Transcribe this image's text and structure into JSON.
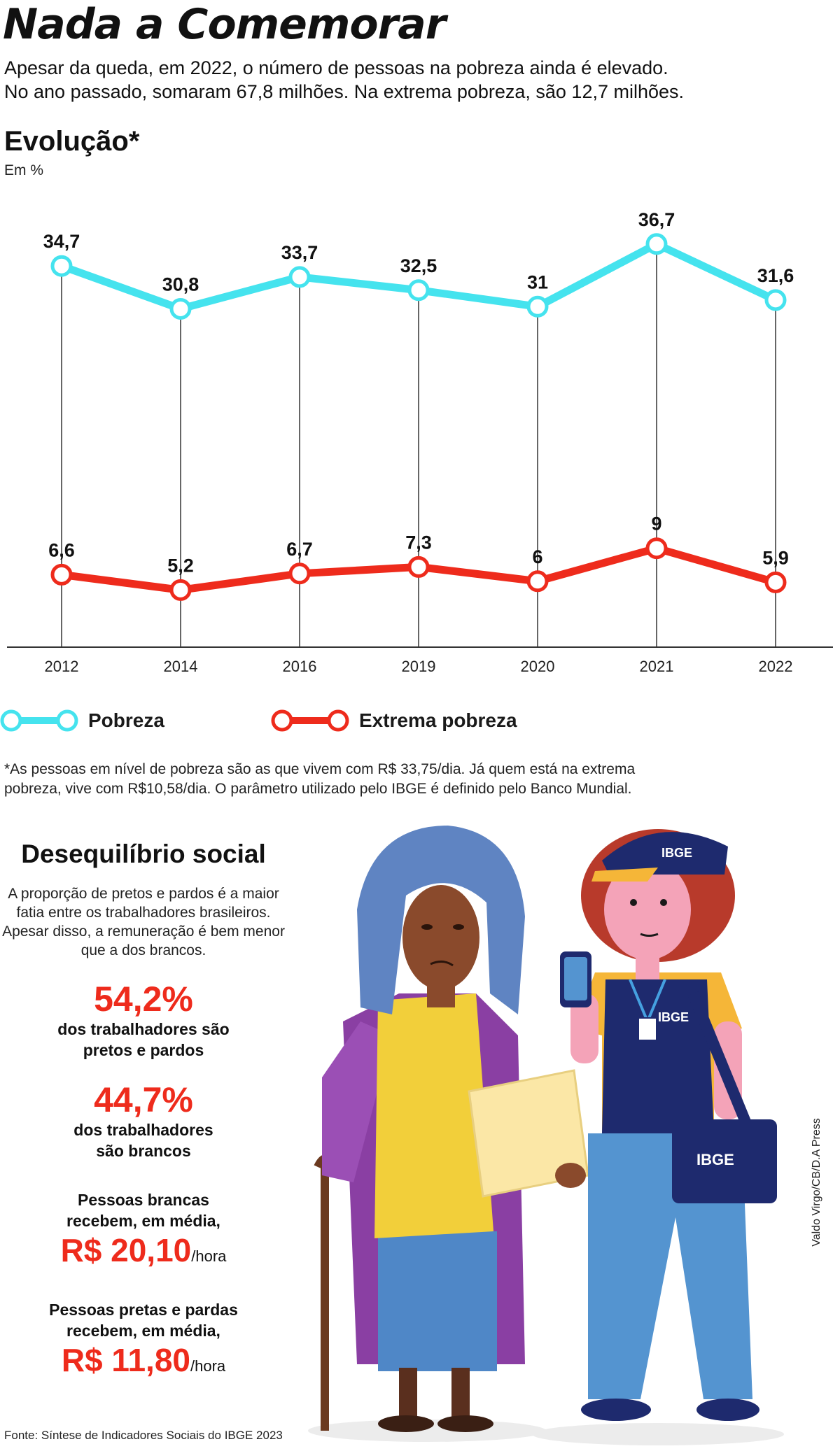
{
  "header": {
    "title": "Nada a Comemorar",
    "subtitle_lines": [
      "Apesar da queda, em 2022, o número de pessoas na pobreza ainda é elevado.",
      "No ano passado, somaram 67,8 milhões. Na extrema pobreza, são 12,7 milhões."
    ]
  },
  "chart_data": {
    "type": "line",
    "title": "Evolução*",
    "unit": "Em %",
    "categories": [
      "2012",
      "2014",
      "2016",
      "2019",
      "2020",
      "2021",
      "2022"
    ],
    "series": [
      {
        "name": "Pobreza",
        "values": [
          34.7,
          30.8,
          33.7,
          32.5,
          31,
          36.7,
          31.6
        ],
        "labels": [
          "34,7",
          "30,8",
          "33,7",
          "32,5",
          "31",
          "36,7",
          "31,6"
        ],
        "color": "#45e3ee"
      },
      {
        "name": "Extrema pobreza",
        "values": [
          6.6,
          5.2,
          6.7,
          7.3,
          6,
          9,
          5.9
        ],
        "labels": [
          "6,6",
          "5,2",
          "6,7",
          "7,3",
          "6",
          "9",
          "5,9"
        ],
        "color": "#ee2b1c"
      }
    ],
    "ylim": [
      0,
      40
    ],
    "grid": "vertical drop lines",
    "legend": "bottom-left"
  },
  "footnote": [
    "*As pessoas em nível de pobreza são as que vivem com R$ 33,75/dia. Já quem está na extrema",
    "pobreza, vive com R$10,58/dia. O parâmetro utilizado pelo IBGE é definido pelo Banco Mundial."
  ],
  "social": {
    "title": "Desequilíbrio social",
    "intro": "A proporção de pretos e pardos é a maior fatia entre os trabalhadores brasileiros. Apesar disso, a remuneração é bem menor que a dos brancos.",
    "stats": [
      {
        "value": "54,2%",
        "desc_lines": [
          "dos trabalhadores são",
          "pretos e pardos"
        ]
      },
      {
        "value": "44,7%",
        "desc_lines": [
          "dos trabalhadores",
          "são brancos"
        ]
      }
    ],
    "wages": [
      {
        "desc_lines": [
          "Pessoas brancas",
          "recebem, em média,"
        ],
        "value": "R$ 20,10",
        "per": "/hora"
      },
      {
        "desc_lines": [
          "Pessoas pretas e pardas",
          "recebem, em média,"
        ],
        "value": "R$ 11,80",
        "per": "/hora"
      }
    ]
  },
  "illustration": {
    "badge_text": "IBGE"
  },
  "source": "Fonte: Síntese de Indicadores Sociais do IBGE 2023",
  "credit": "Valdo Virgo/CB/D.A Press",
  "colors": {
    "pobreza": "#45e3ee",
    "extrema": "#ee2b1c",
    "accent": "#ee2b1c"
  }
}
